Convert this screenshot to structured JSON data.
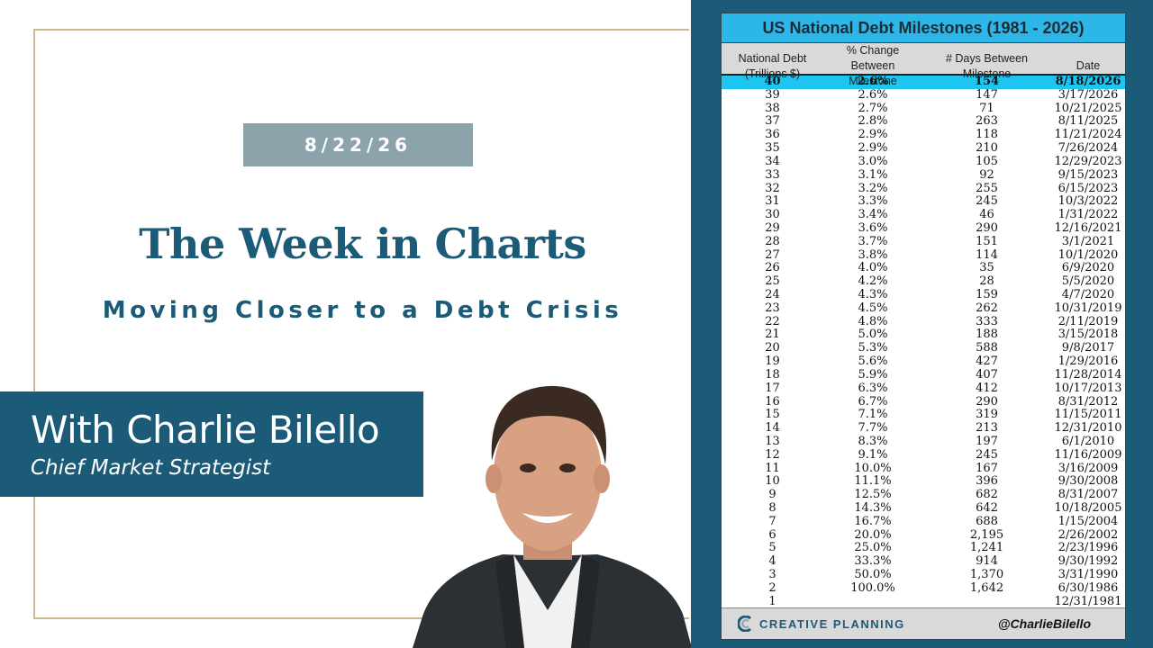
{
  "slide": {
    "date": "8/22/26",
    "title": "The Week in Charts",
    "subtitle": "Moving Closer to a Debt Crisis",
    "host_name": "With Charlie Bilello",
    "host_role": "Chief Market Strategist"
  },
  "table": {
    "title": "US National Debt Milestones (1981 - 2026)",
    "headers": {
      "col1_l1": "National Debt",
      "col1_l2": "(Trillions $)",
      "col2_l1": "% Change Between",
      "col2_l2": "Milestone",
      "col3_l1": "# Days Between",
      "col3_l2": "Milestone",
      "col4_l1": "",
      "col4_l2": "Date"
    },
    "rows": [
      {
        "debt": "40",
        "pct": "2.6%",
        "days": "154",
        "date": "8/18/2026",
        "highlight": true
      },
      {
        "debt": "39",
        "pct": "2.6%",
        "days": "147",
        "date": "3/17/2026"
      },
      {
        "debt": "38",
        "pct": "2.7%",
        "days": "71",
        "date": "10/21/2025"
      },
      {
        "debt": "37",
        "pct": "2.8%",
        "days": "263",
        "date": "8/11/2025"
      },
      {
        "debt": "36",
        "pct": "2.9%",
        "days": "118",
        "date": "11/21/2024"
      },
      {
        "debt": "35",
        "pct": "2.9%",
        "days": "210",
        "date": "7/26/2024"
      },
      {
        "debt": "34",
        "pct": "3.0%",
        "days": "105",
        "date": "12/29/2023"
      },
      {
        "debt": "33",
        "pct": "3.1%",
        "days": "92",
        "date": "9/15/2023"
      },
      {
        "debt": "32",
        "pct": "3.2%",
        "days": "255",
        "date": "6/15/2023"
      },
      {
        "debt": "31",
        "pct": "3.3%",
        "days": "245",
        "date": "10/3/2022"
      },
      {
        "debt": "30",
        "pct": "3.4%",
        "days": "46",
        "date": "1/31/2022"
      },
      {
        "debt": "29",
        "pct": "3.6%",
        "days": "290",
        "date": "12/16/2021"
      },
      {
        "debt": "28",
        "pct": "3.7%",
        "days": "151",
        "date": "3/1/2021"
      },
      {
        "debt": "27",
        "pct": "3.8%",
        "days": "114",
        "date": "10/1/2020"
      },
      {
        "debt": "26",
        "pct": "4.0%",
        "days": "35",
        "date": "6/9/2020"
      },
      {
        "debt": "25",
        "pct": "4.2%",
        "days": "28",
        "date": "5/5/2020"
      },
      {
        "debt": "24",
        "pct": "4.3%",
        "days": "159",
        "date": "4/7/2020"
      },
      {
        "debt": "23",
        "pct": "4.5%",
        "days": "262",
        "date": "10/31/2019"
      },
      {
        "debt": "22",
        "pct": "4.8%",
        "days": "333",
        "date": "2/11/2019"
      },
      {
        "debt": "21",
        "pct": "5.0%",
        "days": "188",
        "date": "3/15/2018"
      },
      {
        "debt": "20",
        "pct": "5.3%",
        "days": "588",
        "date": "9/8/2017"
      },
      {
        "debt": "19",
        "pct": "5.6%",
        "days": "427",
        "date": "1/29/2016"
      },
      {
        "debt": "18",
        "pct": "5.9%",
        "days": "407",
        "date": "11/28/2014"
      },
      {
        "debt": "17",
        "pct": "6.3%",
        "days": "412",
        "date": "10/17/2013"
      },
      {
        "debt": "16",
        "pct": "6.7%",
        "days": "290",
        "date": "8/31/2012"
      },
      {
        "debt": "15",
        "pct": "7.1%",
        "days": "319",
        "date": "11/15/2011"
      },
      {
        "debt": "14",
        "pct": "7.7%",
        "days": "213",
        "date": "12/31/2010"
      },
      {
        "debt": "13",
        "pct": "8.3%",
        "days": "197",
        "date": "6/1/2010"
      },
      {
        "debt": "12",
        "pct": "9.1%",
        "days": "245",
        "date": "11/16/2009"
      },
      {
        "debt": "11",
        "pct": "10.0%",
        "days": "167",
        "date": "3/16/2009"
      },
      {
        "debt": "10",
        "pct": "11.1%",
        "days": "396",
        "date": "9/30/2008"
      },
      {
        "debt": "9",
        "pct": "12.5%",
        "days": "682",
        "date": "8/31/2007"
      },
      {
        "debt": "8",
        "pct": "14.3%",
        "days": "642",
        "date": "10/18/2005"
      },
      {
        "debt": "7",
        "pct": "16.7%",
        "days": "688",
        "date": "1/15/2004"
      },
      {
        "debt": "6",
        "pct": "20.0%",
        "days": "2,195",
        "date": "2/26/2002"
      },
      {
        "debt": "5",
        "pct": "25.0%",
        "days": "1,241",
        "date": "2/23/1996"
      },
      {
        "debt": "4",
        "pct": "33.3%",
        "days": "914",
        "date": "9/30/1992"
      },
      {
        "debt": "3",
        "pct": "50.0%",
        "days": "1,370",
        "date": "3/31/1990"
      },
      {
        "debt": "2",
        "pct": "100.0%",
        "days": "1,642",
        "date": "6/30/1986"
      },
      {
        "debt": "1",
        "pct": "",
        "days": "",
        "date": "12/31/1981"
      }
    ],
    "footer": {
      "brand": "CREATIVE PLANNING",
      "handle": "@CharlieBilello"
    }
  },
  "colors": {
    "navy": "#1b5b78",
    "badge_gray": "#8da3ab",
    "frame_gold": "#c9b98f",
    "table_title_blue": "#2cb7e8",
    "row_highlight": "#1fc5f1",
    "header_gray": "#d9d9d9"
  },
  "icons": [
    "creative-planning-logo",
    "host-portrait"
  ]
}
